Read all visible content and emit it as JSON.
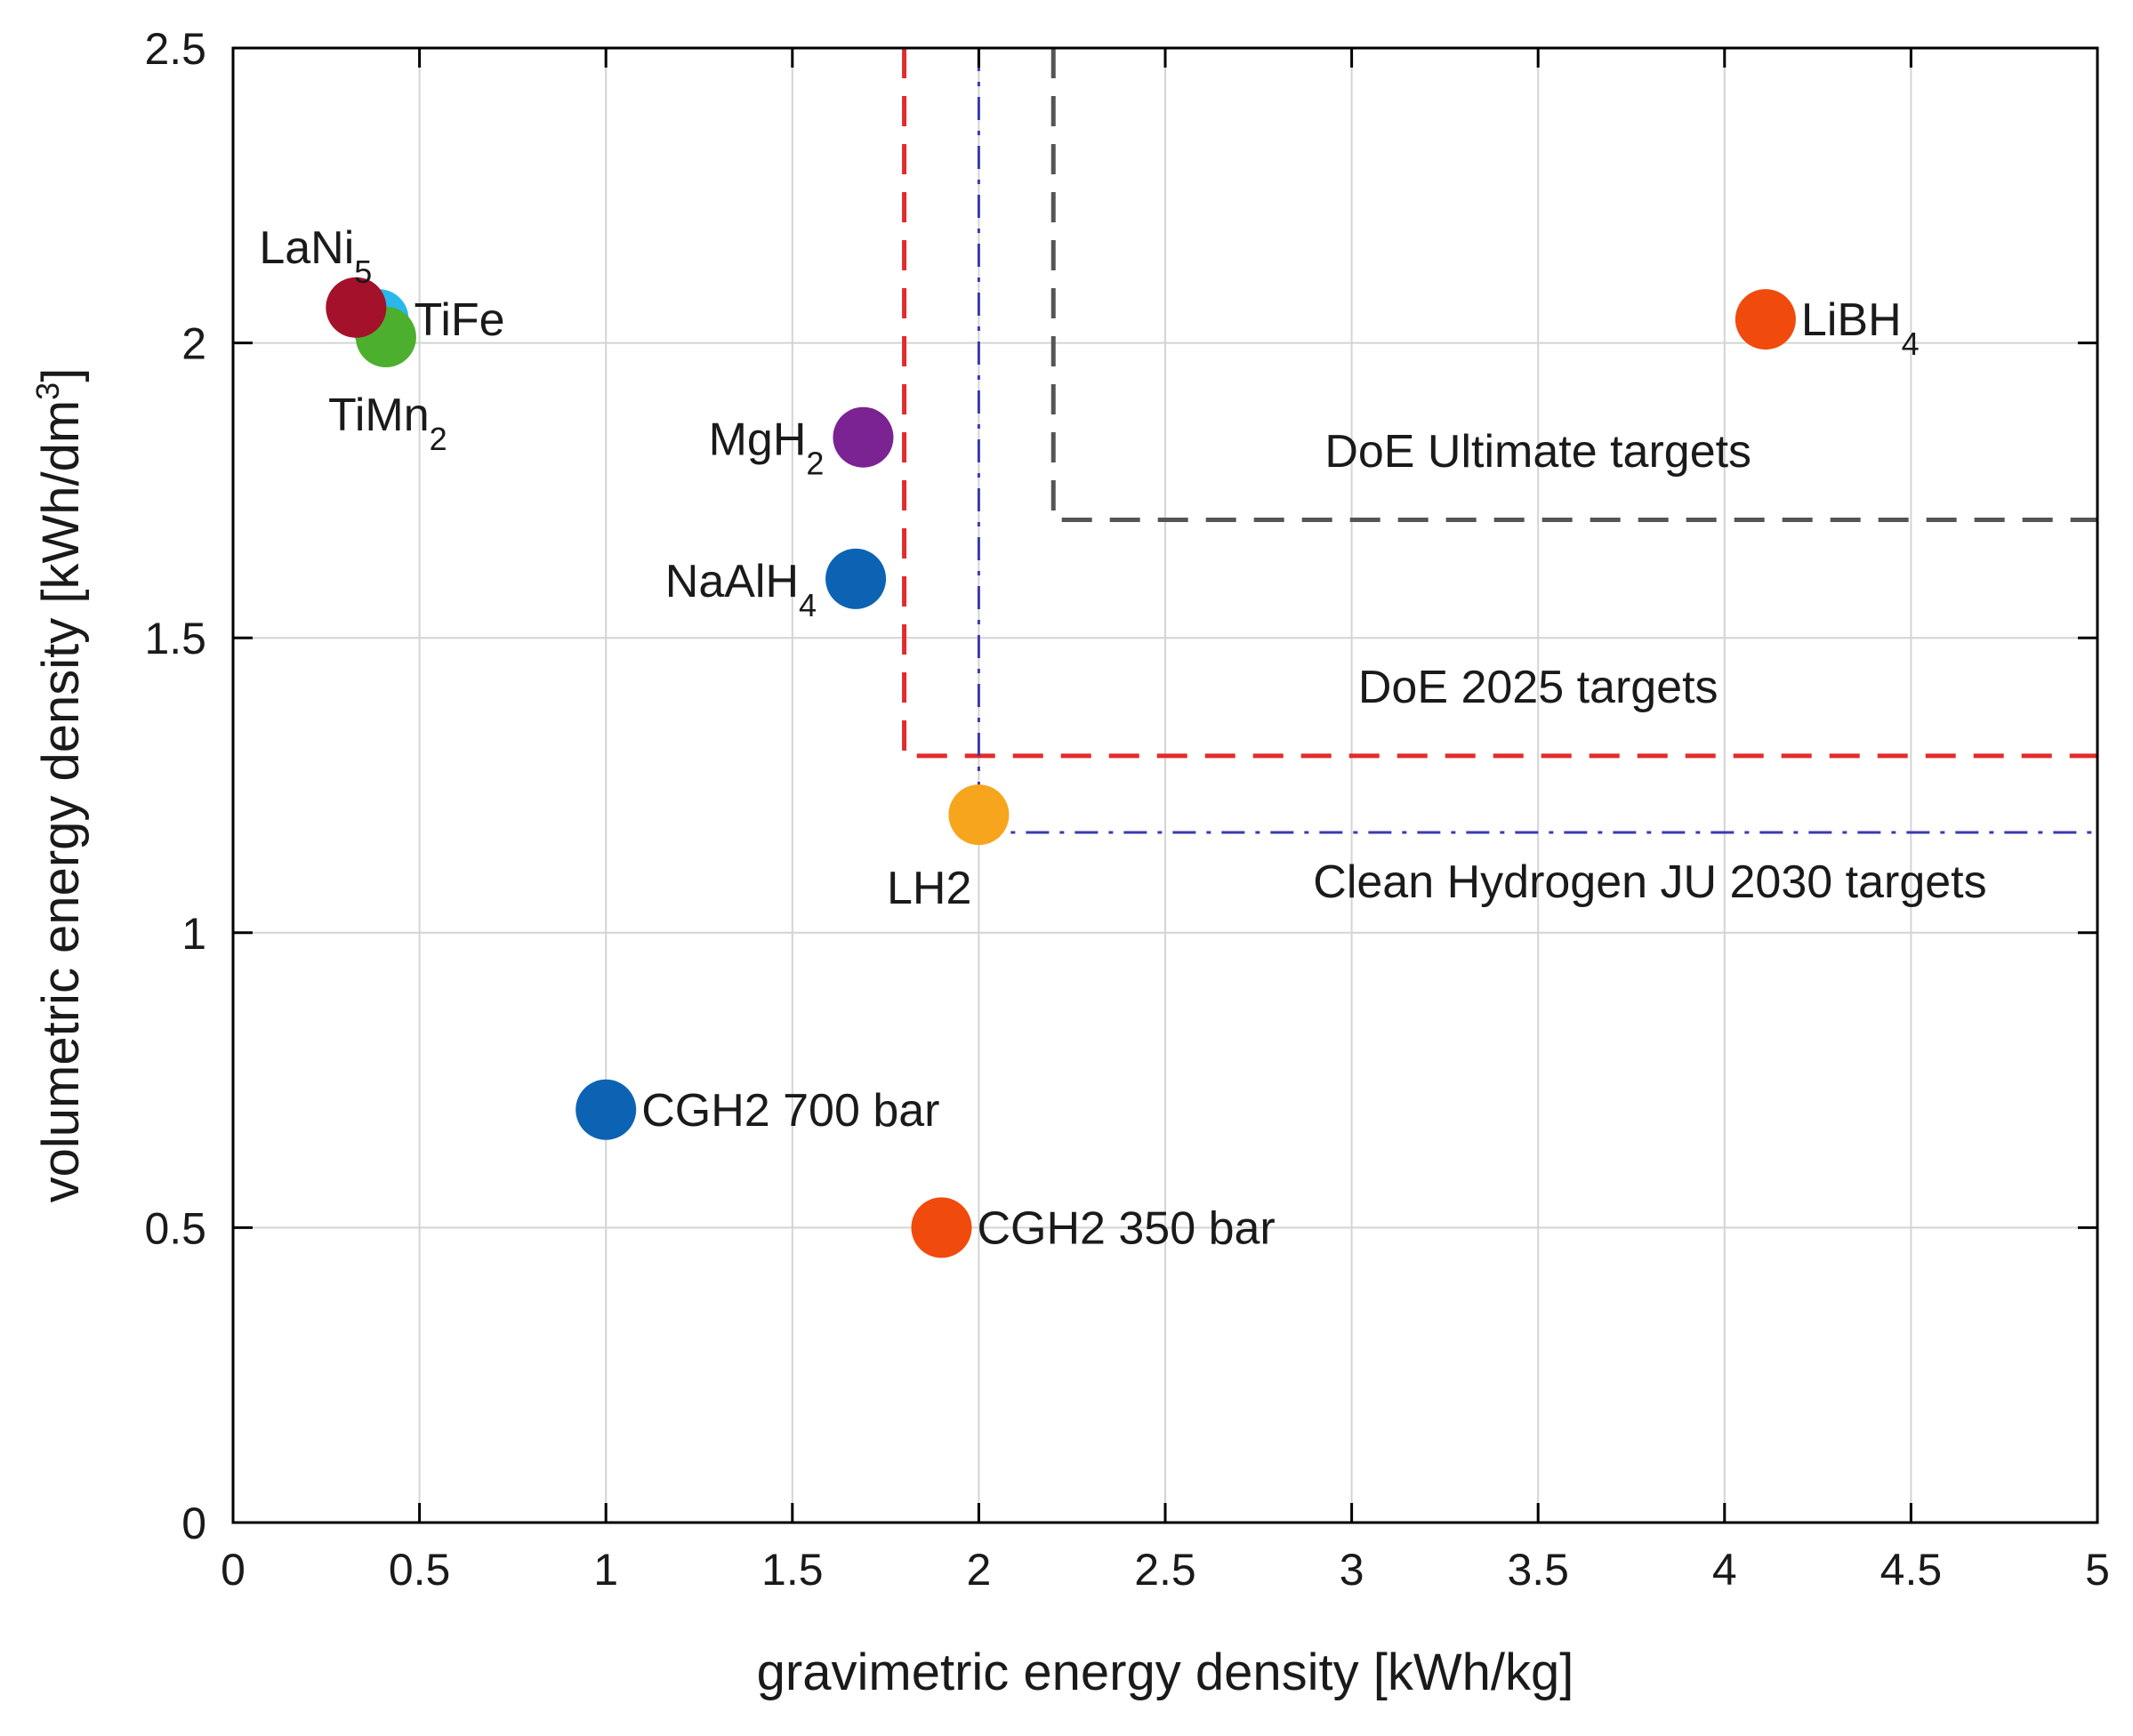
{
  "chart_data": {
    "type": "scatter",
    "xlabel": "gravimetric energy density [kWh/kg]",
    "ylabel_main": "volumetric energy density [kWh/dm",
    "ylabel_sup": "3",
    "ylabel_end": "]",
    "xlim": [
      0,
      5
    ],
    "ylim": [
      0,
      2.5
    ],
    "xticks": [
      0,
      0.5,
      1,
      1.5,
      2,
      2.5,
      3,
      3.5,
      4,
      4.5,
      5
    ],
    "xtick_labels": [
      "0",
      "0.5",
      "1",
      "1.5",
      "2",
      "2.5",
      "3",
      "3.5",
      "4",
      "4.5",
      "5"
    ],
    "yticks": [
      0,
      0.5,
      1,
      1.5,
      2,
      2.5
    ],
    "ytick_labels": [
      "0",
      "0.5",
      "1",
      "1.5",
      "2",
      "2.5"
    ],
    "grid": true,
    "points": [
      {
        "id": "tifi",
        "label": "TiFe",
        "sub": "",
        "x": 0.39,
        "y": 2.04,
        "color": "#2ab7ea",
        "label_pos": "right"
      },
      {
        "id": "timn2",
        "label": "TiMn",
        "sub": "2",
        "x": 0.41,
        "y": 2.01,
        "color": "#4caf2e",
        "label_pos": "below"
      },
      {
        "id": "lani5",
        "label": "LaNi",
        "sub": "5",
        "x": 0.33,
        "y": 2.06,
        "color": "#a3122a",
        "label_pos": "above-left"
      },
      {
        "id": "libh4",
        "label": "LiBH",
        "sub": "4",
        "x": 4.11,
        "y": 2.04,
        "color": "#f04a0c",
        "label_pos": "right"
      },
      {
        "id": "mgh2",
        "label": "MgH",
        "sub": "2",
        "x": 1.69,
        "y": 1.84,
        "color": "#7b2392",
        "label_pos": "left"
      },
      {
        "id": "naalh4",
        "label": "NaAlH",
        "sub": "4",
        "x": 1.67,
        "y": 1.6,
        "color": "#0d63b3",
        "label_pos": "left"
      },
      {
        "id": "lh2",
        "label": "LH2",
        "sub": "",
        "x": 2.0,
        "y": 1.2,
        "color": "#f7a51c",
        "label_pos": "below-left"
      },
      {
        "id": "cgh2-700",
        "label": "CGH2 700 bar",
        "sub": "",
        "x": 1.0,
        "y": 0.7,
        "color": "#0d63b3",
        "label_pos": "right"
      },
      {
        "id": "cgh2-350",
        "label": "CGH2 350 bar",
        "sub": "",
        "x": 1.9,
        "y": 0.5,
        "color": "#f04a0c",
        "label_pos": "right"
      }
    ],
    "targets": [
      {
        "id": "doe-ultimate",
        "label": "DoE Ultimate targets",
        "x": 2.2,
        "y": 1.7,
        "color": "#555555",
        "style": "dash",
        "label_x": 3.5,
        "label_y": 1.79
      },
      {
        "id": "doe-2025",
        "label": "DoE 2025 targets",
        "x": 1.8,
        "y": 1.3,
        "color": "#e32b2b",
        "style": "dash",
        "label_x": 3.5,
        "label_y": 1.39
      },
      {
        "id": "clean-h2-ju",
        "label": "Clean Hydrogen JU 2030 targets",
        "x": 2.0,
        "y": 1.17,
        "color": "#3a3ab0",
        "style": "dashdot",
        "label_x": 3.8,
        "label_y": 1.06
      }
    ]
  }
}
